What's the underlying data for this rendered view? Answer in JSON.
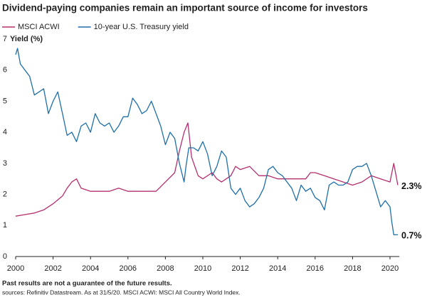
{
  "chart_data": {
    "type": "line",
    "title": "Dividend-paying companies remain an important source of income for investors",
    "y_label": "Yield (%)",
    "footnote": "Past results are not a guarantee of the future results.",
    "source": "sources: Refinitiv Datastream. As at 31/5/20. MSCI ACWI: MSCI All Country World Index.",
    "xlim": [
      2000,
      2020.5
    ],
    "ylim": [
      0,
      7
    ],
    "xticks": [
      2000,
      2002,
      2004,
      2006,
      2008,
      2010,
      2012,
      2014,
      2016,
      2018,
      2020
    ],
    "yticks": [
      0,
      1,
      2,
      3,
      4,
      5,
      6,
      7
    ],
    "grid": false,
    "series": [
      {
        "name": "MSCI ACWI",
        "color": "#b5306f",
        "x": [
          2000,
          2000.5,
          2001,
          2001.5,
          2002,
          2002.5,
          2002.75,
          2003,
          2003.25,
          2003.5,
          2004,
          2004.5,
          2005,
          2005.5,
          2006,
          2006.5,
          2007,
          2007.5,
          2008,
          2008.5,
          2008.75,
          2009,
          2009.2,
          2009.4,
          2009.75,
          2010,
          2010.5,
          2010.75,
          2011,
          2011.5,
          2011.75,
          2012,
          2012.5,
          2013,
          2013.5,
          2014,
          2014.5,
          2015,
          2015.5,
          2015.75,
          2016,
          2016.5,
          2017,
          2017.5,
          2018,
          2018.5,
          2019,
          2019.5,
          2020,
          2020.2,
          2020.42
        ],
        "values": [
          1.3,
          1.35,
          1.4,
          1.5,
          1.7,
          1.95,
          2.2,
          2.4,
          2.5,
          2.2,
          2.1,
          2.1,
          2.1,
          2.2,
          2.1,
          2.1,
          2.1,
          2.1,
          2.4,
          2.7,
          3.4,
          4.0,
          4.3,
          3.2,
          2.6,
          2.5,
          2.7,
          2.5,
          2.4,
          2.6,
          2.9,
          2.8,
          2.9,
          2.6,
          2.6,
          2.5,
          2.5,
          2.5,
          2.5,
          2.7,
          2.7,
          2.6,
          2.5,
          2.4,
          2.3,
          2.4,
          2.6,
          2.5,
          2.4,
          3.0,
          2.3
        ],
        "value_labels": [
          null,
          null,
          null,
          null,
          null,
          null,
          null,
          null,
          null,
          null,
          null,
          null,
          null,
          null,
          null,
          null,
          null,
          null,
          null,
          null,
          null,
          null,
          null,
          null,
          null,
          null,
          null,
          null,
          null,
          null,
          null,
          null,
          null,
          null,
          null,
          null,
          null,
          null,
          null,
          null,
          null,
          null,
          null,
          null,
          null,
          null,
          null,
          null,
          null,
          null,
          "2.3%"
        ]
      },
      {
        "name": "10-year U.S. Treasury yield",
        "color": "#1f6fa8",
        "x": [
          2000,
          2000.1,
          2000.25,
          2000.5,
          2000.75,
          2001,
          2001.25,
          2001.5,
          2001.75,
          2002,
          2002.25,
          2002.5,
          2002.75,
          2003,
          2003.25,
          2003.5,
          2003.75,
          2004,
          2004.25,
          2004.5,
          2004.75,
          2005,
          2005.25,
          2005.5,
          2005.75,
          2006,
          2006.25,
          2006.5,
          2006.75,
          2007,
          2007.25,
          2007.5,
          2007.75,
          2008,
          2008.25,
          2008.5,
          2008.75,
          2009,
          2009.1,
          2009.25,
          2009.5,
          2009.75,
          2010,
          2010.25,
          2010.5,
          2010.75,
          2011,
          2011.25,
          2011.5,
          2011.75,
          2012,
          2012.25,
          2012.5,
          2012.75,
          2013,
          2013.25,
          2013.5,
          2013.75,
          2014,
          2014.25,
          2014.5,
          2014.75,
          2015,
          2015.25,
          2015.5,
          2015.75,
          2016,
          2016.25,
          2016.5,
          2016.75,
          2017,
          2017.25,
          2017.5,
          2017.75,
          2018,
          2018.25,
          2018.5,
          2018.75,
          2019,
          2019.25,
          2019.5,
          2019.75,
          2020,
          2020.1,
          2020.2,
          2020.42
        ],
        "values": [
          6.5,
          6.7,
          6.2,
          6.0,
          5.8,
          5.2,
          5.3,
          5.4,
          4.6,
          5.0,
          5.3,
          4.6,
          3.9,
          4.0,
          3.7,
          4.2,
          4.3,
          4.0,
          4.6,
          4.3,
          4.2,
          4.3,
          4.0,
          4.2,
          4.5,
          4.5,
          5.1,
          4.9,
          4.6,
          4.7,
          5.0,
          4.6,
          4.2,
          3.6,
          4.0,
          3.8,
          3.0,
          2.4,
          2.9,
          3.5,
          3.5,
          3.4,
          3.7,
          3.3,
          2.6,
          2.9,
          3.4,
          3.2,
          2.2,
          2.0,
          2.2,
          1.8,
          1.6,
          1.7,
          1.9,
          2.2,
          2.8,
          2.9,
          2.7,
          2.6,
          2.4,
          2.2,
          1.8,
          2.3,
          2.1,
          2.2,
          1.9,
          1.8,
          1.5,
          2.3,
          2.4,
          2.3,
          2.3,
          2.4,
          2.8,
          2.9,
          2.9,
          3.0,
          2.6,
          2.1,
          1.6,
          1.8,
          1.6,
          1.1,
          0.7,
          0.7
        ],
        "value_labels": [
          null,
          null,
          null,
          null,
          null,
          null,
          null,
          null,
          null,
          null,
          null,
          null,
          null,
          null,
          null,
          null,
          null,
          null,
          null,
          null,
          null,
          null,
          null,
          null,
          null,
          null,
          null,
          null,
          null,
          null,
          null,
          null,
          null,
          null,
          null,
          null,
          null,
          null,
          null,
          null,
          null,
          null,
          null,
          null,
          null,
          null,
          null,
          null,
          null,
          null,
          null,
          null,
          null,
          null,
          null,
          null,
          null,
          null,
          null,
          null,
          null,
          null,
          null,
          null,
          null,
          null,
          null,
          null,
          null,
          null,
          null,
          null,
          null,
          null,
          null,
          null,
          null,
          null,
          null,
          null,
          null,
          null,
          null,
          null,
          null,
          "0.7%"
        ]
      }
    ]
  }
}
